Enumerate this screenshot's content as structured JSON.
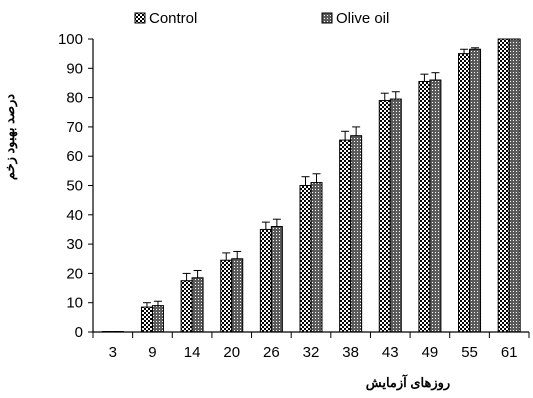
{
  "chart_data": {
    "type": "bar",
    "title": "",
    "xlabel": "روزهای آزمایش",
    "ylabel": "درصد بهبود زخم",
    "ylim": [
      0,
      100
    ],
    "yticks": [
      0,
      10,
      20,
      30,
      40,
      50,
      60,
      70,
      80,
      90,
      100
    ],
    "categories": [
      "3",
      "9",
      "14",
      "20",
      "26",
      "32",
      "38",
      "43",
      "49",
      "55",
      "61"
    ],
    "series": [
      {
        "name": "Control",
        "pattern": "checker",
        "values": [
          0,
          8.5,
          17.5,
          24.5,
          35,
          50,
          65.5,
          79,
          85.5,
          95,
          100
        ],
        "errors": [
          0,
          1.5,
          2.5,
          2.5,
          2.5,
          3,
          3,
          2.5,
          2.5,
          1.5,
          0
        ]
      },
      {
        "name": "Olive oil",
        "pattern": "dots",
        "values": [
          0,
          9,
          18.5,
          25,
          36,
          51,
          67,
          79.5,
          86,
          96.5,
          100
        ],
        "errors": [
          0,
          1.5,
          2.5,
          2.5,
          2.5,
          3,
          3,
          2.5,
          2.5,
          0.5,
          0
        ]
      }
    ],
    "legend": "top"
  }
}
